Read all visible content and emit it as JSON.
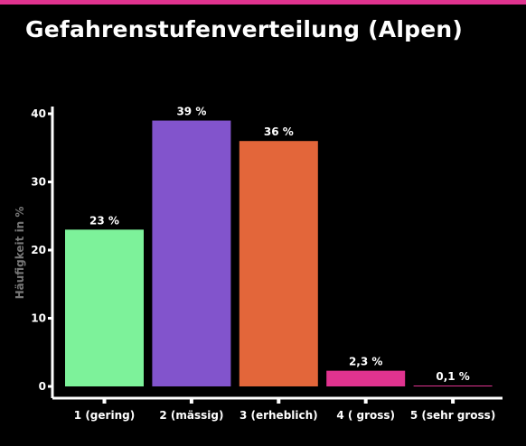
{
  "colors": {
    "background": "#000000",
    "accent_bar": "#e0338f",
    "axis": "#ffffff"
  },
  "header": {
    "title": "Gefahrenstufenverteilung (Alpen)"
  },
  "chart_data": {
    "type": "bar",
    "categories": [
      "1 (gering)",
      "2 (mässig)",
      "3 (erheblich)",
      "4 ( gross)",
      "5 (sehr gross)"
    ],
    "values": [
      23,
      39,
      36,
      2.3,
      0.1
    ],
    "value_labels": [
      "23 %",
      "39 %",
      "36 %",
      "2,3 %",
      "0,1 %"
    ],
    "colors": [
      "#7df29a",
      "#8254cc",
      "#e3663a",
      "#e0338f",
      "#e0338f"
    ],
    "xlabel": "",
    "ylabel": "Häufigkeit in %",
    "ylim": [
      0,
      41
    ],
    "yticks": [
      0,
      10,
      20,
      30,
      40
    ],
    "grid": false
  }
}
